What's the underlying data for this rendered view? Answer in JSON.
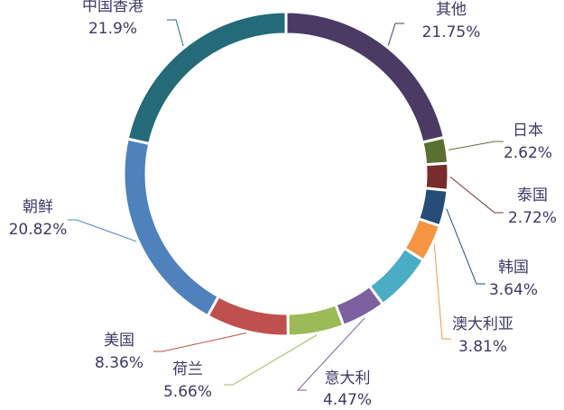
{
  "chart_data": {
    "type": "pie",
    "variant": "donut",
    "title": "",
    "legend": "none",
    "slices": [
      {
        "name": "其他",
        "value": 21.75,
        "label": "21.75%",
        "color": "#4a3a64"
      },
      {
        "name": "日本",
        "value": 2.62,
        "label": "2.62%",
        "color": "#5a7030"
      },
      {
        "name": "泰国",
        "value": 2.72,
        "label": "2.72%",
        "color": "#782c2c"
      },
      {
        "name": "韩国",
        "value": 3.64,
        "label": "3.64%",
        "color": "#254d78"
      },
      {
        "name": "澳大利亚",
        "value": 3.81,
        "label": "3.81%",
        "color": "#f59441"
      },
      {
        "name": "意大利",
        "value": 6.0,
        "label": "",
        "color": "#4bacc6"
      },
      {
        "name": "意大利",
        "value": 4.47,
        "label": "4.47%",
        "color": "#7d60a0"
      },
      {
        "name": "荷兰",
        "value": 5.66,
        "label": "5.66%",
        "color": "#9bbb59"
      },
      {
        "name": "美国",
        "value": 8.36,
        "label": "8.36%",
        "color": "#c0504d"
      },
      {
        "name": "朝鲜",
        "value": 20.82,
        "label": "20.82%",
        "color": "#4f81bd"
      },
      {
        "name": "中国香港",
        "value": 21.9,
        "label": "21.9%",
        "color": "#246a78"
      }
    ]
  }
}
